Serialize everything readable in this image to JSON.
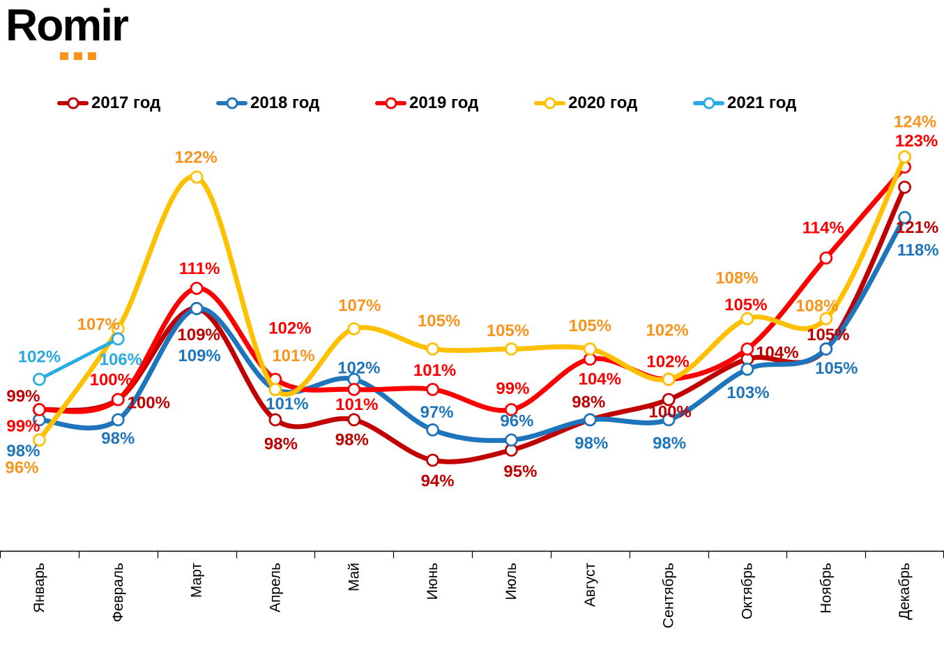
{
  "logo": {
    "text": "Romir",
    "dot_color": "#F7941D"
  },
  "chart_data": {
    "type": "line",
    "unit": "%",
    "title": "",
    "xlabel": "",
    "ylabel": "",
    "ylim": [
      88,
      130
    ],
    "grid": false,
    "legend_position": "top",
    "categories": [
      "Январь",
      "Февраль",
      "Март",
      "Апрель",
      "Май",
      "Июнь",
      "Июль",
      "Август",
      "Сентябрь",
      "Октябрь",
      "Ноябрь",
      "Декабрь"
    ],
    "series": [
      {
        "name": "2017 год",
        "color": "#C00000",
        "label_color": "#C00000",
        "width": 7,
        "values": [
          99,
          100,
          109,
          98,
          98,
          94,
          95,
          98,
          100,
          104,
          105,
          121
        ],
        "label_offsets": [
          [
            -23,
            -19
          ],
          [
            44,
            5
          ],
          [
            3,
            38
          ],
          [
            8,
            35
          ],
          [
            -3,
            29
          ],
          [
            7,
            30
          ],
          [
            13,
            31
          ],
          [
            -2,
            -25
          ],
          [
            2,
            18
          ],
          [
            43,
            -9
          ],
          [
            3,
            -20
          ],
          [
            18,
            58
          ]
        ]
      },
      {
        "name": "2018 год",
        "color": "#1F75BB",
        "label_color": "#1F75BB",
        "width": 7,
        "values": [
          98,
          98,
          109,
          101,
          102,
          97,
          96,
          98,
          98,
          103,
          105,
          118
        ],
        "label_offsets": [
          [
            -23,
            45
          ],
          [
            0,
            27
          ],
          [
            4,
            68
          ],
          [
            17,
            21
          ],
          [
            7,
            -16
          ],
          [
            6,
            -25
          ],
          [
            8,
            -27
          ],
          [
            2,
            34
          ],
          [
            1,
            34
          ],
          [
            1,
            34
          ],
          [
            15,
            28
          ],
          [
            19,
            47
          ]
        ]
      },
      {
        "name": "2019 год",
        "color": "#FE0000",
        "label_color": "#FE0000",
        "width": 7,
        "values": [
          99,
          100,
          111,
          102,
          101,
          101,
          99,
          104,
          102,
          105,
          114,
          123
        ],
        "label_offsets": [
          [
            -23,
            24
          ],
          [
            -10,
            -28
          ],
          [
            4,
            -28
          ],
          [
            21,
            -73
          ],
          [
            4,
            22
          ],
          [
            3,
            -27
          ],
          [
            2,
            -30
          ],
          [
            14,
            29
          ],
          [
            -1,
            -25
          ],
          [
            -2,
            -63
          ],
          [
            -4,
            -43
          ],
          [
            17,
            -37
          ]
        ]
      },
      {
        "name": "2020 год",
        "color": "#FFC000",
        "label_color": "#F7941D",
        "width": 7,
        "values": [
          96,
          107,
          122,
          101,
          107,
          105,
          105,
          105,
          102,
          108,
          108,
          124
        ],
        "label_offsets": [
          [
            -25,
            40
          ],
          [
            -28,
            -6
          ],
          [
            -1,
            -28
          ],
          [
            26,
            -48
          ],
          [
            8,
            -33
          ],
          [
            9,
            -40
          ],
          [
            -5,
            -26
          ],
          [
            0,
            -33
          ],
          [
            -2,
            -70
          ],
          [
            -15,
            -58
          ],
          [
            -13,
            -18
          ],
          [
            15,
            -50
          ]
        ]
      },
      {
        "name": "2021 год",
        "color": "#29ABE2",
        "label_color": "#29ABE2",
        "width": 5,
        "values": [
          102,
          106,
          null,
          null,
          null,
          null,
          null,
          null,
          null,
          null,
          null,
          null
        ],
        "label_offsets": [
          [
            0,
            -32
          ],
          [
            4,
            30
          ],
          null,
          null,
          null,
          null,
          null,
          null,
          null,
          null,
          null,
          null
        ]
      }
    ]
  }
}
